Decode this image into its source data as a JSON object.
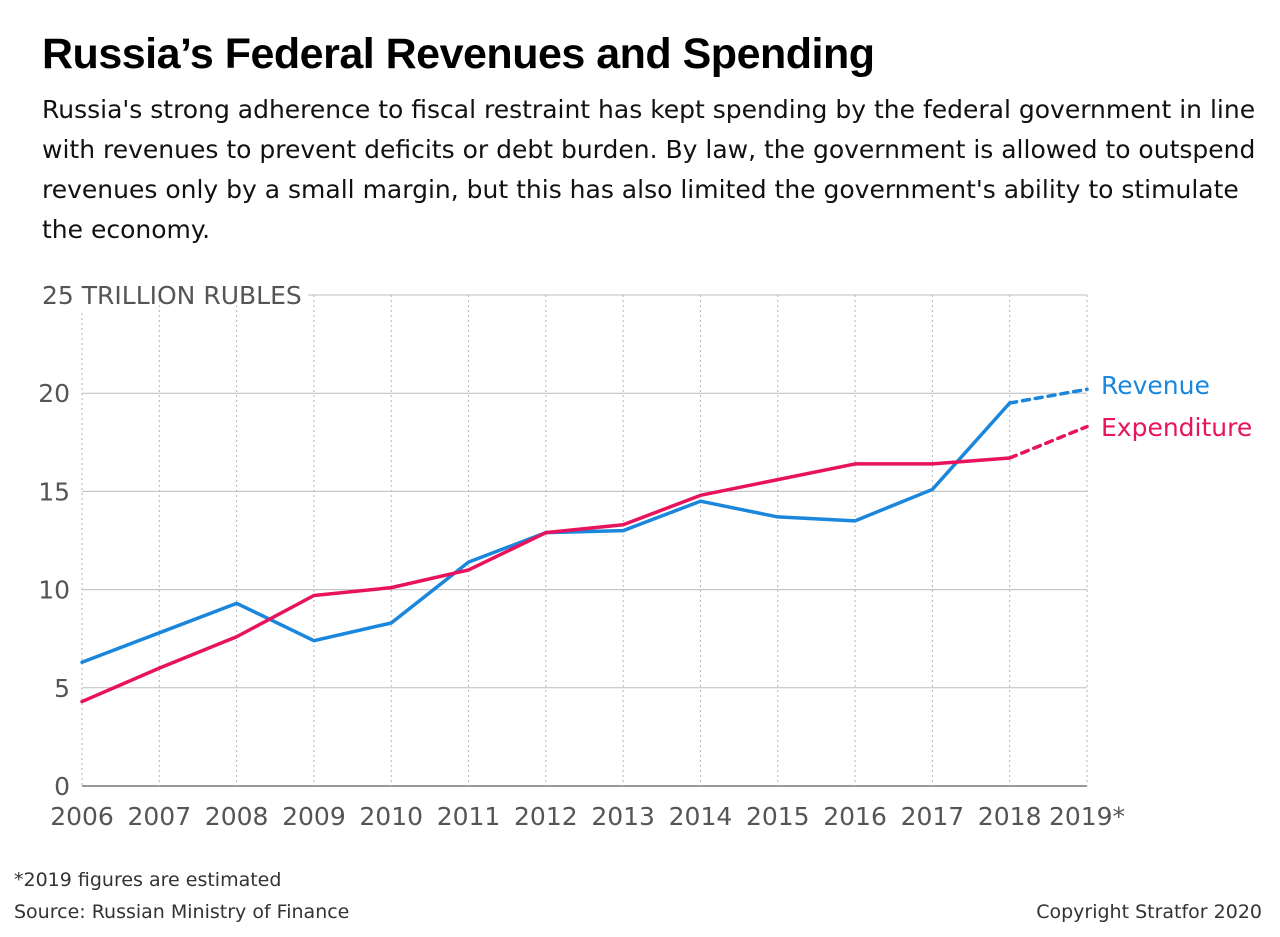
{
  "title": "Russia’s Federal Revenues and Spending",
  "subtitle": "Russia's strong adherence to fiscal restraint has kept spending by the federal government in line with revenues to prevent deficits or debt burden. By law, the government is allowed to outspend revenues only by a small margin, but this has also limited the government's ability to stimulate the economy.",
  "footnote": "*2019 figures are estimated",
  "source": "Source: Russian Ministry of Finance",
  "copyright": "Copyright Stratfor 2020",
  "colors": {
    "revenue": "#1a87dd",
    "expenditure": "#e8135c",
    "grid": "#bdbdbd",
    "axis_text": "#555555"
  },
  "chart_data": {
    "type": "line",
    "x": [
      "2006",
      "2007",
      "2008",
      "2009",
      "2010",
      "2011",
      "2012",
      "2013",
      "2014",
      "2015",
      "2016",
      "2017",
      "2018",
      "2019*"
    ],
    "ylim": [
      0,
      25
    ],
    "yticks": [
      "0",
      "5",
      "10",
      "15",
      "20",
      "25 TRILLION RUBLES"
    ],
    "ytick_values": [
      0,
      5,
      10,
      15,
      20,
      25
    ],
    "grid": true,
    "estimated_from_index": 12,
    "series": [
      {
        "name": "Revenue",
        "color": "#1a87dd",
        "values": [
          6.3,
          7.8,
          9.3,
          7.4,
          8.3,
          11.4,
          12.9,
          13.0,
          14.5,
          13.7,
          13.5,
          15.1,
          19.5,
          20.2
        ]
      },
      {
        "name": "Expenditure",
        "color": "#e8135c",
        "values": [
          4.3,
          6.0,
          7.6,
          9.7,
          10.1,
          11.0,
          12.9,
          13.3,
          14.8,
          15.6,
          16.4,
          16.4,
          16.7,
          18.3
        ]
      }
    ]
  }
}
